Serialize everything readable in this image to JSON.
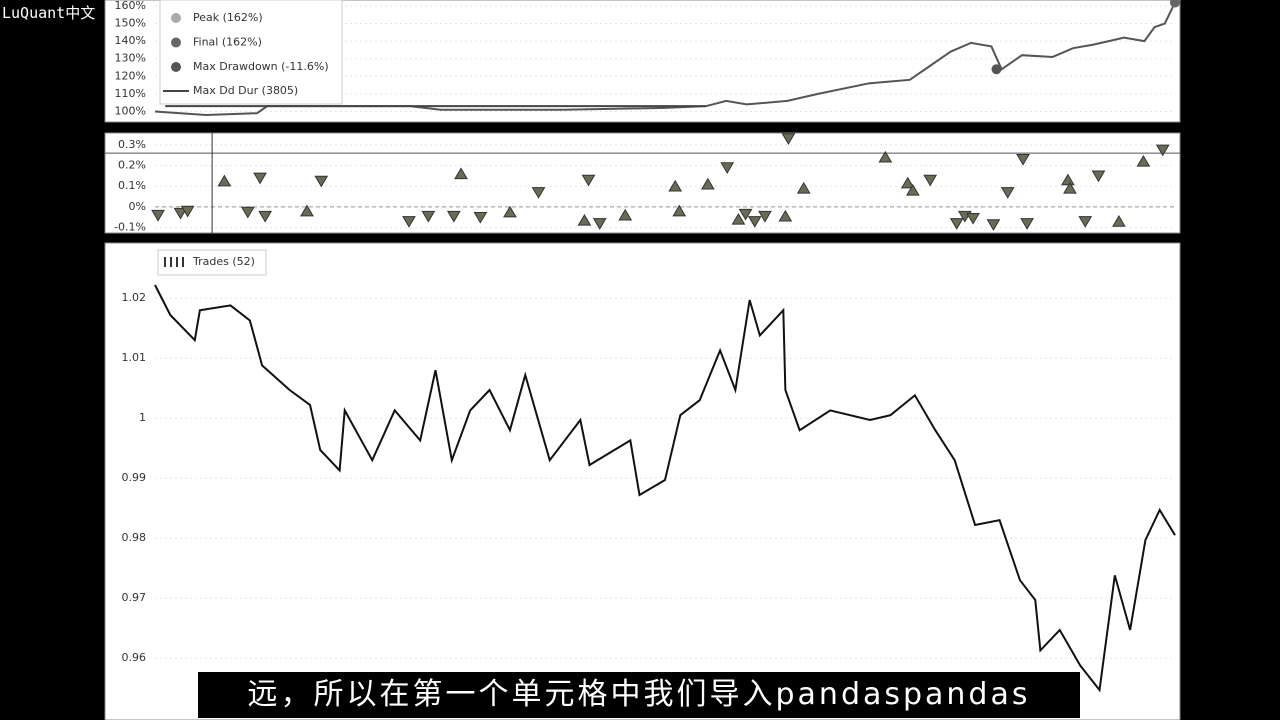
{
  "overlay": {
    "watermark": "LuQuant中文",
    "subtitle": "远，所以在第一个单元格中我们导入pandaspandas"
  },
  "chart_data": [
    {
      "type": "line",
      "color": "#555555",
      "xlim": [
        0,
        100
      ],
      "ylim": [
        94,
        163.4
      ],
      "yticks": [
        {
          "value": 100,
          "label": "100%"
        },
        {
          "value": 110,
          "label": "110%"
        },
        {
          "value": 120,
          "label": "120%"
        },
        {
          "value": 130,
          "label": "130%"
        },
        {
          "value": 140,
          "label": "140%"
        },
        {
          "value": 150,
          "label": "150%"
        },
        {
          "value": 160,
          "label": "160%"
        }
      ],
      "x": [
        0,
        5,
        10,
        11,
        25,
        28,
        40,
        50,
        54,
        56,
        58,
        62,
        65,
        70,
        74,
        76,
        77,
        78,
        80,
        82,
        83,
        85,
        88,
        90,
        92,
        95,
        97,
        98,
        99,
        100
      ],
      "values": [
        100,
        98,
        99,
        103,
        103,
        101,
        101,
        102,
        103,
        106,
        104,
        106,
        110,
        116,
        118,
        126,
        130,
        134,
        139,
        137,
        124,
        132,
        131,
        136,
        138,
        142,
        140,
        148,
        150,
        162
      ],
      "markers": [
        {
          "label": "Peak (162%)",
          "x": 100,
          "y": 162,
          "color": "#aaaaaa"
        },
        {
          "label": "Final (162%)",
          "x": 100,
          "y": 162,
          "color": "#666666"
        },
        {
          "label": "Max Drawdown (-11.6%)",
          "x": 82.5,
          "y": 124,
          "color": "#555555"
        }
      ],
      "duration_line": {
        "label": "Max Dd Dur (3805)",
        "y": 103,
        "x": [
          1,
          54
        ],
        "color": "#444444"
      }
    },
    {
      "type": "scatter",
      "color": "#6b6b55",
      "xlim": [
        0,
        100
      ],
      "ylim": [
        -0.126,
        0.357
      ],
      "hline": 0.26,
      "vline": 5.6,
      "yticks": [
        {
          "value": -0.1,
          "label": "-0.1%"
        },
        {
          "value": 0,
          "label": "0%"
        },
        {
          "value": 0.1,
          "label": "0.1%"
        },
        {
          "value": 0.2,
          "label": "0.2%"
        },
        {
          "value": 0.3,
          "label": "0.3%"
        }
      ],
      "x": [
        0.3,
        2.5,
        3.2,
        6.8,
        9.1,
        10.3,
        10.8,
        14.9,
        16.3,
        24.9,
        26.8,
        29.3,
        30,
        31.9,
        34.8,
        37.6,
        42.1,
        42.5,
        43.6,
        46.1,
        51,
        51.4,
        54.2,
        56.1,
        57.2,
        57.9,
        58.8,
        59.8,
        61.8,
        62.1,
        63.6,
        71.6,
        73.8,
        74.3,
        76,
        78.6,
        79.4,
        80.2,
        82.2,
        83.6,
        85.1,
        85.5,
        89.5,
        89.7,
        91.2,
        92.5,
        94.5,
        96.9,
        98.8
      ],
      "values": [
        -0.04,
        -0.03,
        -0.02,
        0.125,
        -0.025,
        0.14,
        -0.045,
        -0.02,
        0.125,
        -0.07,
        -0.045,
        -0.045,
        0.16,
        -0.05,
        -0.025,
        0.07,
        -0.065,
        0.13,
        -0.08,
        -0.04,
        0.1,
        -0.02,
        0.11,
        0.19,
        -0.06,
        -0.035,
        -0.07,
        -0.045,
        -0.045,
        0.33,
        0.09,
        0.24,
        0.115,
        0.08,
        0.13,
        -0.08,
        -0.045,
        -0.055,
        -0.085,
        0.07,
        0.23,
        -0.08,
        0.13,
        0.09,
        -0.07,
        0.15,
        -0.07,
        0.22,
        0.275
      ],
      "directions": [
        "down",
        "down",
        "down",
        "up",
        "down",
        "down",
        "down",
        "up",
        "down",
        "down",
        "down",
        "down",
        "up",
        "down",
        "up",
        "down",
        "up",
        "down",
        "down",
        "up",
        "up",
        "up",
        "up",
        "down",
        "up",
        "down",
        "down",
        "down",
        "up",
        "down",
        "up",
        "up",
        "up",
        "up",
        "down",
        "down",
        "down",
        "down",
        "down",
        "down",
        "down",
        "down",
        "up",
        "up",
        "down",
        "down",
        "up",
        "up",
        "down"
      ]
    },
    {
      "type": "line",
      "color": "#111111",
      "xlim": [
        0,
        100
      ],
      "ylim": [
        0.9497,
        1.0292
      ],
      "legend": "Trades (52)",
      "yticks": [
        0.96,
        0.97,
        0.98,
        0.99,
        1,
        1.01,
        1.02
      ],
      "x": [
        0,
        1.5,
        3.9,
        4.4,
        7.4,
        9.3,
        10.5,
        13.2,
        15.2,
        16.2,
        18.1,
        18.6,
        21.3,
        23.5,
        26,
        27.5,
        29.1,
        30.9,
        32.8,
        34.8,
        36.3,
        38.7,
        41.7,
        42.6,
        46.6,
        47.5,
        50,
        51.5,
        53.4,
        55.4,
        56.9,
        58.3,
        59.3,
        61.6,
        61.8,
        63.2,
        66.2,
        70.1,
        72.1,
        74.5,
        76.5,
        78.4,
        80.4,
        82.8,
        84.8,
        86.3,
        86.8,
        88.7,
        90.7,
        92.6,
        94.1,
        95.6,
        97.1,
        98.5,
        100
      ],
      "values": [
        1.0222,
        1.0172,
        1.013,
        1.018,
        1.0188,
        1.0163,
        1.0088,
        1.0047,
        1.0022,
        0.9947,
        0.9913,
        1.0013,
        0.993,
        1.0013,
        0.9963,
        1.008,
        0.993,
        1.0013,
        1.0047,
        0.998,
        1.0072,
        0.993,
        0.9997,
        0.9922,
        0.9963,
        0.9872,
        0.9897,
        1.0005,
        1.003,
        1.0113,
        1.0047,
        1.0197,
        1.0138,
        1.018,
        1.0047,
        0.998,
        1.0013,
        0.9997,
        1.0005,
        1.0038,
        0.998,
        0.993,
        0.9822,
        0.983,
        0.973,
        0.9697,
        0.9613,
        0.9647,
        0.9588,
        0.9547,
        0.9738,
        0.9647,
        0.9797,
        0.9847,
        0.9805
      ]
    }
  ]
}
